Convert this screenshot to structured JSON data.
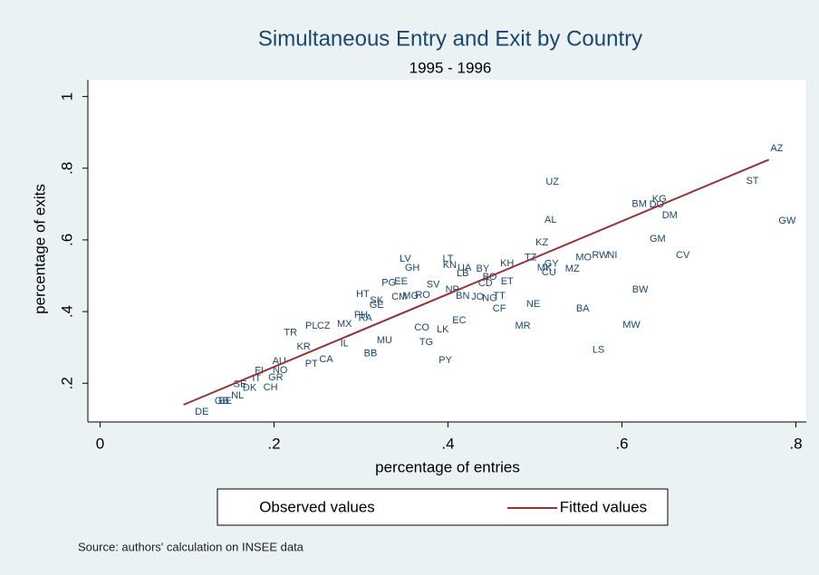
{
  "chart_data": {
    "type": "scatter",
    "title": "Simultaneous Entry and Exit by Country",
    "subtitle": "1995 - 1996",
    "x_label": "percentage of entries",
    "y_label": "percentage of exits",
    "note": "Source: authors' calculation on INSEE data",
    "xlim": [
      -0.014,
      0.812
    ],
    "ylim": [
      0.092,
      1.047
    ],
    "xticks": [
      0,
      {
        "value": 0.2,
        "label": ".2"
      },
      {
        "value": 0.4,
        "label": ".4"
      },
      {
        "value": 0.6,
        "label": ".6"
      },
      {
        "value": 0.8,
        "label": ".8"
      }
    ],
    "yticks": [
      {
        "value": 0.2,
        "label": ".2"
      },
      {
        "value": 0.4,
        "label": ".4"
      },
      {
        "value": 0.6,
        "label": ".6"
      },
      {
        "value": 0.8,
        "label": ".8"
      },
      1
    ],
    "series": [
      {
        "name": "Observed values",
        "color": "#1a476f",
        "labels": [
          "AZ",
          "ST",
          "GW",
          "UZ",
          "KG",
          "BM",
          "DO",
          "DM",
          "AL",
          "GM",
          "KZ",
          "CV",
          "RW",
          "NI",
          "MO",
          "TZ",
          "GY",
          "MK",
          "CU",
          "MZ",
          "KH",
          "LV",
          "GH",
          "LT",
          "KN",
          "UA",
          "BY",
          "LB",
          "BO",
          "CD",
          "ET",
          "PG",
          "EE",
          "SV",
          "NP",
          "HT",
          "SK",
          "CM",
          "RO",
          "MG",
          "BN",
          "JO",
          "NG",
          "TT",
          "NE",
          "CF",
          "BA",
          "BW",
          "MW",
          "MR",
          "LS",
          "PY",
          "TG",
          "GE",
          "CO",
          "EC",
          "LK",
          "MU",
          "RA",
          "PH",
          "TR",
          "PL",
          "CZ",
          "MX",
          "KR",
          "BB",
          "AU",
          "FI",
          "NO",
          "GR",
          "SE",
          "IT",
          "DK",
          "CH",
          "NL",
          "GB",
          "BE",
          "DE",
          "PT",
          "CA",
          "IL"
        ],
        "x": [
          0.778,
          0.75,
          0.79,
          0.52,
          0.643,
          0.62,
          0.64,
          0.655,
          0.518,
          0.641,
          0.508,
          0.67,
          0.575,
          0.589,
          0.556,
          0.495,
          0.519,
          0.511,
          0.516,
          0.543,
          0.468,
          0.351,
          0.359,
          0.4,
          0.402,
          0.419,
          0.44,
          0.417,
          0.448,
          0.443,
          0.468,
          0.332,
          0.346,
          0.383,
          0.405,
          0.302,
          0.318,
          0.344,
          0.371,
          0.357,
          0.417,
          0.434,
          0.448,
          0.459,
          0.498,
          0.459,
          0.555,
          0.621,
          0.611,
          0.486,
          0.573,
          0.397,
          0.375,
          0.318,
          0.37,
          0.413,
          0.394,
          0.327,
          0.305,
          0.3,
          0.219,
          0.243,
          0.257,
          0.281,
          0.234,
          0.311,
          0.206,
          0.183,
          0.207,
          0.202,
          0.161,
          0.18,
          0.172,
          0.196,
          0.158,
          0.14,
          0.144,
          0.117,
          0.243,
          0.26,
          0.281
        ],
        "y": [
          0.855,
          0.764,
          0.653,
          0.761,
          0.713,
          0.7,
          0.698,
          0.668,
          0.655,
          0.602,
          0.592,
          0.557,
          0.557,
          0.557,
          0.55,
          0.55,
          0.532,
          0.521,
          0.509,
          0.519,
          0.534,
          0.547,
          0.521,
          0.547,
          0.529,
          0.521,
          0.519,
          0.506,
          0.496,
          0.478,
          0.483,
          0.48,
          0.483,
          0.475,
          0.46,
          0.448,
          0.43,
          0.441,
          0.446,
          0.443,
          0.443,
          0.441,
          0.436,
          0.443,
          0.42,
          0.408,
          0.408,
          0.461,
          0.362,
          0.36,
          0.292,
          0.264,
          0.314,
          0.418,
          0.354,
          0.375,
          0.35,
          0.319,
          0.381,
          0.39,
          0.34,
          0.36,
          0.36,
          0.365,
          0.302,
          0.282,
          0.261,
          0.234,
          0.236,
          0.216,
          0.196,
          0.213,
          0.186,
          0.188,
          0.165,
          0.15,
          0.15,
          0.12,
          0.254,
          0.266,
          0.31
        ]
      },
      {
        "name": "Fitted values",
        "color": "#90353b",
        "x": [
          0.096,
          0.769
        ],
        "y": [
          0.14,
          0.824
        ]
      }
    ]
  }
}
